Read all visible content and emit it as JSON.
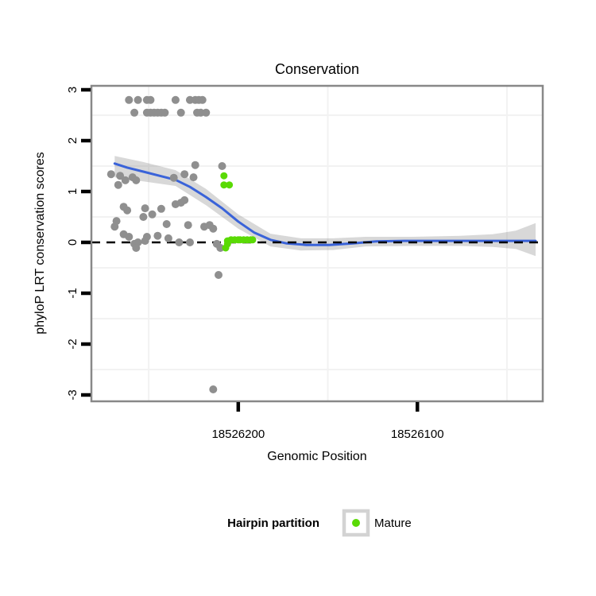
{
  "figure": {
    "background": "#ffffff"
  },
  "chart_data": {
    "type": "scatter",
    "title": "Conservation",
    "xlabel": "Genomic Position",
    "ylabel": "phyloP LRT conservation scores",
    "x_reversed": true,
    "x_domain": [
      18526282,
      18526030
    ],
    "y_domain": [
      -3.125,
      3.078
    ],
    "x_ticks": [
      {
        "value": 18526200,
        "label": "18526200"
      },
      {
        "value": 18526100,
        "label": "18526100"
      }
    ],
    "y_ticks": [
      {
        "value": 3,
        "label": "3"
      },
      {
        "value": 2,
        "label": "2"
      },
      {
        "value": 1,
        "label": "1"
      },
      {
        "value": 0,
        "label": "0"
      },
      {
        "value": -1,
        "label": "-1"
      },
      {
        "value": -2,
        "label": "-2"
      },
      {
        "value": -3,
        "label": "-3"
      }
    ],
    "x_minor_gridlines": [
      18526250,
      18526150,
      18526050
    ],
    "y_minor_gridlines": [
      2.5,
      1.5,
      0.5,
      -0.5,
      -1.5,
      -2.5
    ],
    "zero_line": 0,
    "grid_on": true,
    "legend_position": "bottom",
    "colors": {
      "other_points": "#8f8f8f",
      "mature_points": "#5ada05",
      "smooth_line": "#3a63d9",
      "confidence_band": "rgba(125,125,125,0.30)",
      "panel_border": "#888888",
      "gridline": "#f2f2f2",
      "zero_line": "#000000",
      "legend_key_border": "#d3d3d3"
    },
    "series": [
      {
        "name": "Other",
        "color": "#8f8f8f",
        "points": [
          [
            18526261,
            2.8
          ],
          [
            18526256,
            2.8
          ],
          [
            18526251,
            2.8
          ],
          [
            18526249,
            2.8
          ],
          [
            18526235,
            2.8
          ],
          [
            18526227,
            2.8
          ],
          [
            18526224,
            2.8
          ],
          [
            18526222,
            2.8
          ],
          [
            18526220,
            2.8
          ],
          [
            18526258,
            2.55
          ],
          [
            18526251,
            2.55
          ],
          [
            18526249,
            2.55
          ],
          [
            18526247,
            2.55
          ],
          [
            18526245,
            2.55
          ],
          [
            18526243,
            2.55
          ],
          [
            18526241,
            2.55
          ],
          [
            18526232,
            2.55
          ],
          [
            18526223,
            2.55
          ],
          [
            18526221,
            2.55
          ],
          [
            18526218,
            2.55
          ],
          [
            18526271,
            1.34
          ],
          [
            18526266,
            1.31
          ],
          [
            18526263,
            1.22
          ],
          [
            18526267,
            1.13
          ],
          [
            18526259,
            1.28
          ],
          [
            18526257,
            1.22
          ],
          [
            18526236,
            1.27
          ],
          [
            18526230,
            1.34
          ],
          [
            18526224,
            1.52
          ],
          [
            18526225,
            1.28
          ],
          [
            18526209,
            1.5
          ],
          [
            18526264,
            0.7
          ],
          [
            18526262,
            0.63
          ],
          [
            18526268,
            0.42
          ],
          [
            18526269,
            0.31
          ],
          [
            18526252,
            0.67
          ],
          [
            18526253,
            0.5
          ],
          [
            18526248,
            0.55
          ],
          [
            18526243,
            0.66
          ],
          [
            18526240,
            0.36
          ],
          [
            18526235,
            0.75
          ],
          [
            18526232,
            0.78
          ],
          [
            18526230,
            0.83
          ],
          [
            18526228,
            0.34
          ],
          [
            18526219,
            0.31
          ],
          [
            18526216,
            0.34
          ],
          [
            18526214,
            0.27
          ],
          [
            18526264,
            0.16
          ],
          [
            18526261,
            0.11
          ],
          [
            18526258,
            -0.03
          ],
          [
            18526256,
            0.0
          ],
          [
            18526257,
            -0.11
          ],
          [
            18526252,
            0.03
          ],
          [
            18526251,
            0.11
          ],
          [
            18526245,
            0.13
          ],
          [
            18526239,
            0.08
          ],
          [
            18526233,
            0.0
          ],
          [
            18526227,
            0.0
          ],
          [
            18526212,
            -0.03
          ],
          [
            18526210,
            -0.11
          ],
          [
            18526211,
            -0.64
          ],
          [
            18526214,
            -2.89
          ]
        ]
      },
      {
        "name": "Mature",
        "color": "#5ada05",
        "points": [
          [
            18526208,
            1.31
          ],
          [
            18526208,
            1.13
          ],
          [
            18526205,
            1.13
          ],
          [
            18526207,
            -0.11
          ],
          [
            18526206,
            -0.03
          ],
          [
            18526206,
            0.03
          ],
          [
            18526204,
            0.05
          ],
          [
            18526202,
            0.05
          ],
          [
            18526200,
            0.05
          ],
          [
            18526199,
            0.05
          ],
          [
            18526197,
            0.05
          ],
          [
            18526195,
            0.05
          ],
          [
            18526193,
            0.05
          ],
          [
            18526192,
            0.05
          ]
        ]
      }
    ],
    "smooth": {
      "color": "#3a63d9",
      "points": [
        [
          18526269,
          1.55
        ],
        [
          18526262,
          1.47
        ],
        [
          18526253,
          1.39
        ],
        [
          18526244,
          1.31
        ],
        [
          18526235,
          1.23
        ],
        [
          18526227,
          1.09
        ],
        [
          18526218,
          0.89
        ],
        [
          18526209,
          0.67
        ],
        [
          18526200,
          0.41
        ],
        [
          18526191,
          0.19
        ],
        [
          18526182,
          0.05
        ],
        [
          18526173,
          -0.02
        ],
        [
          18526162,
          -0.05
        ],
        [
          18526149,
          -0.05
        ],
        [
          18526136,
          -0.02
        ],
        [
          18526123,
          0.02
        ],
        [
          18526107,
          0.03
        ],
        [
          18526085,
          0.03
        ],
        [
          18526058,
          0.03
        ],
        [
          18526034,
          0.03
        ]
      ]
    },
    "confidence_band": {
      "points": [
        [
          18526269,
          1.7,
          1.28
        ],
        [
          18526253,
          1.58,
          1.2
        ],
        [
          18526235,
          1.42,
          1.11
        ],
        [
          18526218,
          1.05,
          0.73
        ],
        [
          18526200,
          0.55,
          0.27
        ],
        [
          18526182,
          0.17,
          -0.08
        ],
        [
          18526165,
          0.08,
          -0.16
        ],
        [
          18526147,
          0.08,
          -0.15
        ],
        [
          18526129,
          0.11,
          -0.08
        ],
        [
          18526103,
          0.11,
          -0.07
        ],
        [
          18526076,
          0.13,
          -0.07
        ],
        [
          18526058,
          0.16,
          -0.09
        ],
        [
          18526045,
          0.23,
          -0.13
        ],
        [
          18526034,
          0.38,
          -0.27
        ]
      ]
    },
    "legend": {
      "title": "Hairpin partition",
      "entries": [
        {
          "label": "Mature",
          "color": "#5ada05"
        }
      ]
    }
  }
}
